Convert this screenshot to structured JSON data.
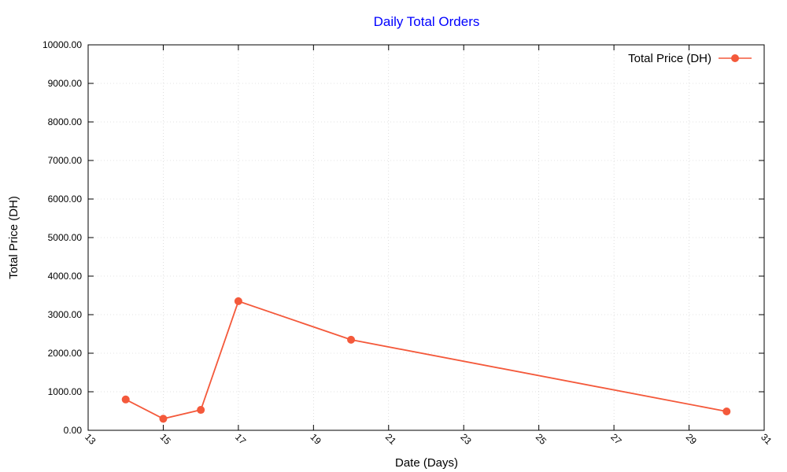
{
  "chart_data": {
    "type": "line",
    "title": "Daily Total Orders",
    "xlabel": "Date (Days)",
    "ylabel": "Total Price (DH)",
    "xlim": [
      13,
      31
    ],
    "ylim": [
      0,
      10000
    ],
    "xticks": [
      "13",
      "15",
      "17",
      "19",
      "21",
      "23",
      "25",
      "27",
      "29",
      "31"
    ],
    "yticks": [
      "0.00",
      "1000.00",
      "2000.00",
      "3000.00",
      "4000.00",
      "5000.00",
      "6000.00",
      "7000.00",
      "8000.00",
      "9000.00",
      "10000.00"
    ],
    "grid": true,
    "legend_position": "top-right",
    "series": [
      {
        "name": "Total Price (DH)",
        "color": "#f4593b",
        "x": [
          14,
          15,
          16,
          17,
          20,
          30
        ],
        "y": [
          800,
          300,
          530,
          3350,
          2350,
          490
        ]
      }
    ],
    "title_color": "#0000ff"
  }
}
